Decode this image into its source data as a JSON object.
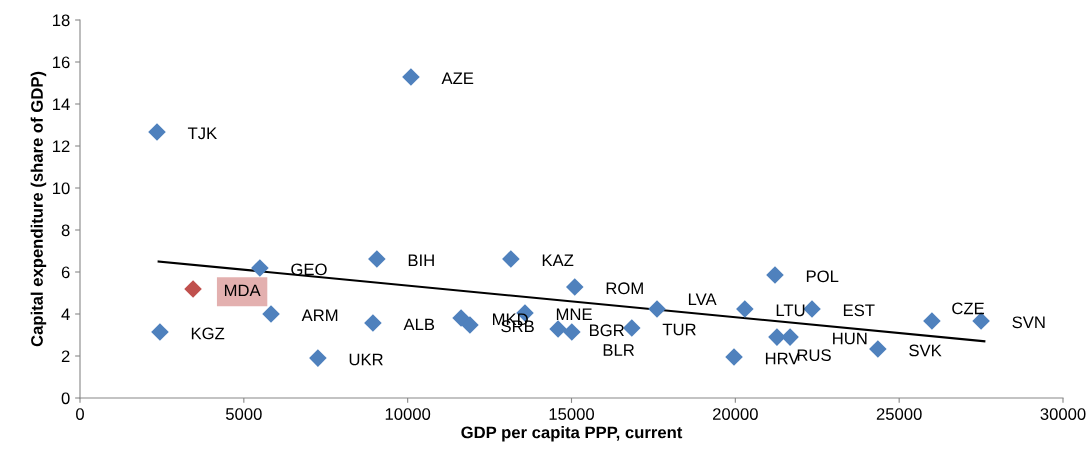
{
  "chart_data": {
    "type": "scatter",
    "xlabel": "GDP per capita PPP, current",
    "ylabel": "Capital expenditure (share of GDP)",
    "xlim": [
      0,
      30000
    ],
    "xticks": [
      0,
      5000,
      10000,
      15000,
      20000,
      25000,
      30000
    ],
    "ylim": [
      0,
      18
    ],
    "yticks": [
      0,
      2,
      4,
      6,
      8,
      10,
      12,
      14,
      16,
      18
    ],
    "grid": false,
    "marker": "diamond",
    "series": [
      {
        "color": "#4f81bd",
        "x": [
          2350,
          10100,
          2440,
          5490,
          5830,
          9060,
          7260,
          8940,
          13150,
          11630,
          11900,
          13580,
          14590,
          15010,
          15100,
          16840,
          17610,
          19960,
          20290,
          21210,
          21270,
          21670,
          22340,
          24350,
          26000,
          27500
        ],
        "values": [
          12.67,
          15.29,
          3.14,
          6.19,
          4.0,
          6.62,
          1.9,
          3.57,
          6.62,
          3.81,
          3.48,
          4.05,
          3.29,
          3.14,
          5.29,
          3.33,
          4.24,
          1.95,
          4.24,
          5.86,
          2.9,
          2.9,
          4.24,
          2.33,
          3.67,
          3.67
        ]
      },
      {
        "color": "#c0504d",
        "x": [
          3450
        ],
        "values": [
          5.19
        ]
      },
      {
        "type": "line",
        "color": "#000000",
        "marker": "none",
        "x": [
          2400,
          27600
        ],
        "values": [
          6.5,
          2.7
        ]
      }
    ],
    "annotations": [
      {
        "text": "TJK",
        "x": 2350,
        "y": 12.67
      },
      {
        "text": "AZE",
        "x": 10100,
        "y": 15.29
      },
      {
        "text": "KGZ",
        "x": 2440,
        "y": 3.14
      },
      {
        "text": "MDA",
        "x": 3450,
        "y": 5.19
      },
      {
        "text": "GEO",
        "x": 5490,
        "y": 6.19
      },
      {
        "text": "ARM",
        "x": 5830,
        "y": 4.0
      },
      {
        "text": "BIH",
        "x": 9060,
        "y": 6.62
      },
      {
        "text": "UKR",
        "x": 7260,
        "y": 1.9
      },
      {
        "text": "ALB",
        "x": 8940,
        "y": 3.57
      },
      {
        "text": "KAZ",
        "x": 13150,
        "y": 6.62
      },
      {
        "text": "MKD",
        "x": 11630,
        "y": 3.81
      },
      {
        "text": "SRB",
        "x": 11900,
        "y": 3.48
      },
      {
        "text": "MNE",
        "x": 13580,
        "y": 4.05
      },
      {
        "text": "BGR",
        "x": 14590,
        "y": 3.29
      },
      {
        "text": "BLR",
        "x": 15010,
        "y": 3.14
      },
      {
        "text": "ROM",
        "x": 15100,
        "y": 5.29
      },
      {
        "text": "TUR",
        "x": 16840,
        "y": 3.33
      },
      {
        "text": "LVA",
        "x": 17610,
        "y": 4.24
      },
      {
        "text": "HRV",
        "x": 19960,
        "y": 1.95
      },
      {
        "text": "LTU",
        "x": 20290,
        "y": 4.24
      },
      {
        "text": "POL",
        "x": 21210,
        "y": 5.86
      },
      {
        "text": "RUS",
        "x": 21270,
        "y": 2.9
      },
      {
        "text": "HUN",
        "x": 21670,
        "y": 2.9
      },
      {
        "text": "EST",
        "x": 22340,
        "y": 4.24
      },
      {
        "text": "SVK",
        "x": 24350,
        "y": 2.33
      },
      {
        "text": "CZE",
        "x": 26000,
        "y": 3.67
      },
      {
        "text": "SVN",
        "x": 27500,
        "y": 3.67
      }
    ]
  }
}
